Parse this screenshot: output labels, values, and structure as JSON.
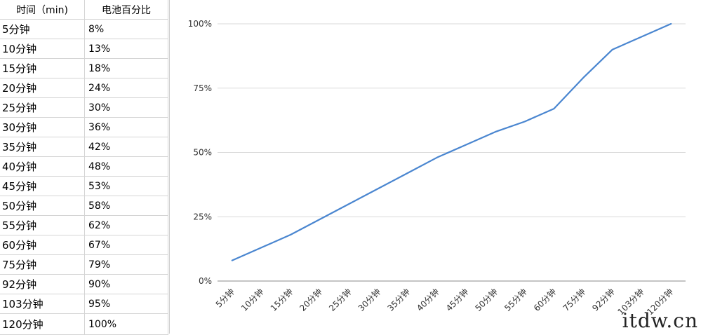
{
  "table": {
    "headers": [
      "时间（min)",
      "电池百分比"
    ],
    "rows": [
      [
        "5分钟",
        "8%"
      ],
      [
        "10分钟",
        "13%"
      ],
      [
        "15分钟",
        "18%"
      ],
      [
        "20分钟",
        "24%"
      ],
      [
        "25分钟",
        "30%"
      ],
      [
        "30分钟",
        "36%"
      ],
      [
        "35分钟",
        "42%"
      ],
      [
        "40分钟",
        "48%"
      ],
      [
        "45分钟",
        "53%"
      ],
      [
        "50分钟",
        "58%"
      ],
      [
        "55分钟",
        "62%"
      ],
      [
        "60分钟",
        "67%"
      ],
      [
        "75分钟",
        "79%"
      ],
      [
        "92分钟",
        "90%"
      ],
      [
        "103分钟",
        "95%"
      ],
      [
        "120分钟",
        "100%"
      ]
    ]
  },
  "chart_data": {
    "type": "line",
    "title": "",
    "xlabel": "",
    "ylabel": "",
    "categories": [
      "5分钟",
      "10分钟",
      "15分钟",
      "20分钟",
      "25分钟",
      "30分钟",
      "35分钟",
      "40分钟",
      "45分钟",
      "50分钟",
      "55分钟",
      "60分钟",
      "75分钟",
      "92分钟",
      "103分钟",
      "120分钟"
    ],
    "series": [
      {
        "values": [
          8,
          13,
          18,
          24,
          30,
          36,
          42,
          48,
          53,
          58,
          62,
          67,
          79,
          90,
          95,
          100
        ]
      }
    ],
    "ylim": [
      0,
      100
    ],
    "yticks": [
      "0%",
      "25%",
      "50%",
      "75%",
      "100%"
    ],
    "ytick_values": [
      0,
      25,
      50,
      75,
      100
    ],
    "grid": true,
    "legend": "none",
    "line_color": "#4a86d0"
  },
  "watermark": "itdw.cn"
}
